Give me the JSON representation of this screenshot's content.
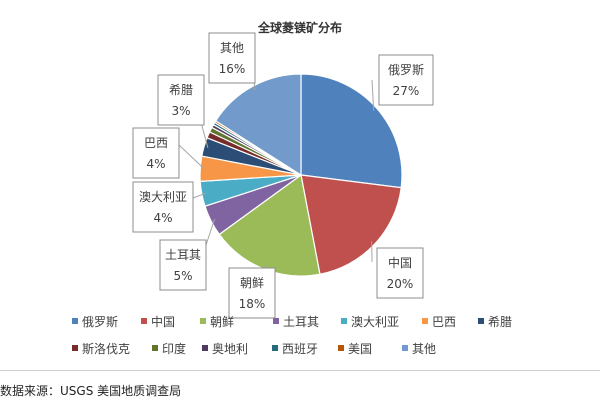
{
  "chart_data": {
    "type": "pie",
    "title": "全球菱镁矿分布",
    "slices": [
      {
        "name": "俄罗斯",
        "value": 27,
        "label": "27%",
        "color": "#4f81bd"
      },
      {
        "name": "中国",
        "value": 20,
        "label": "20%",
        "color": "#c0504d"
      },
      {
        "name": "朝鲜",
        "value": 18,
        "label": "18%",
        "color": "#9bbb59"
      },
      {
        "name": "土耳其",
        "value": 5,
        "label": "5%",
        "color": "#8064a2"
      },
      {
        "name": "澳大利亚",
        "value": 4,
        "label": "4%",
        "color": "#4bacc6"
      },
      {
        "name": "巴西",
        "value": 4,
        "label": "4%",
        "color": "#f79646"
      },
      {
        "name": "希腊",
        "value": 3,
        "label": "3%",
        "color": "#2c4d75"
      },
      {
        "name": "斯洛伐克",
        "value": 1,
        "label": "",
        "color": "#772c2a"
      },
      {
        "name": "印度",
        "value": 0.8,
        "label": "",
        "color": "#5f7530"
      },
      {
        "name": "奥地利",
        "value": 0.5,
        "label": "",
        "color": "#4d3b62"
      },
      {
        "name": "西班牙",
        "value": 0.4,
        "label": "",
        "color": "#276a7c"
      },
      {
        "name": "美国",
        "value": 0.3,
        "label": "",
        "color": "#b65708"
      },
      {
        "name": "其他",
        "value": 16,
        "label": "16%",
        "color": "#729aca"
      }
    ],
    "legend_position": "bottom"
  },
  "source_note": "数据来源：USGS 美国地质调查局"
}
